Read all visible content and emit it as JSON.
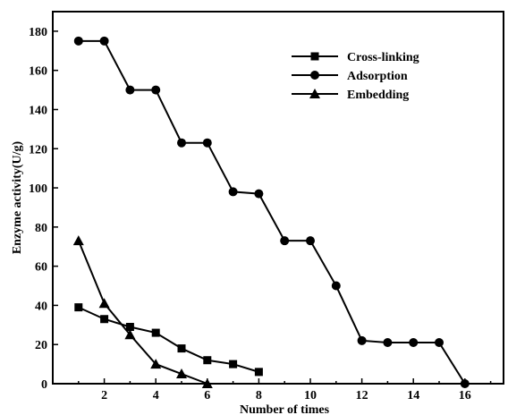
{
  "chart_data": {
    "type": "line",
    "title": "",
    "xlabel": "Number of times",
    "ylabel": "Enzyme activity(U/g)",
    "xlim": [
      0,
      17.5
    ],
    "ylim": [
      0,
      190
    ],
    "xticks": [
      2,
      4,
      6,
      8,
      10,
      12,
      14,
      16
    ],
    "yticks": [
      0,
      20,
      40,
      60,
      80,
      100,
      120,
      140,
      160,
      180
    ],
    "grid": false,
    "legend_position": "top-right",
    "series": [
      {
        "name": "Cross-linking",
        "marker": "square",
        "x": [
          1,
          2,
          3,
          4,
          5,
          6,
          7,
          8
        ],
        "values": [
          39,
          33,
          29,
          26,
          18,
          12,
          10,
          6
        ]
      },
      {
        "name": "Adsorption",
        "marker": "circle",
        "x": [
          1,
          2,
          3,
          4,
          5,
          6,
          7,
          8,
          9,
          10,
          11,
          12,
          13,
          14,
          15,
          16
        ],
        "values": [
          175,
          175,
          150,
          150,
          123,
          123,
          98,
          97,
          73,
          73,
          50,
          22,
          21,
          21,
          21,
          0
        ]
      },
      {
        "name": "Embedding",
        "marker": "triangle",
        "x": [
          1,
          2,
          3,
          4,
          5,
          6
        ],
        "values": [
          73,
          41,
          25,
          10,
          5,
          0
        ]
      }
    ]
  }
}
